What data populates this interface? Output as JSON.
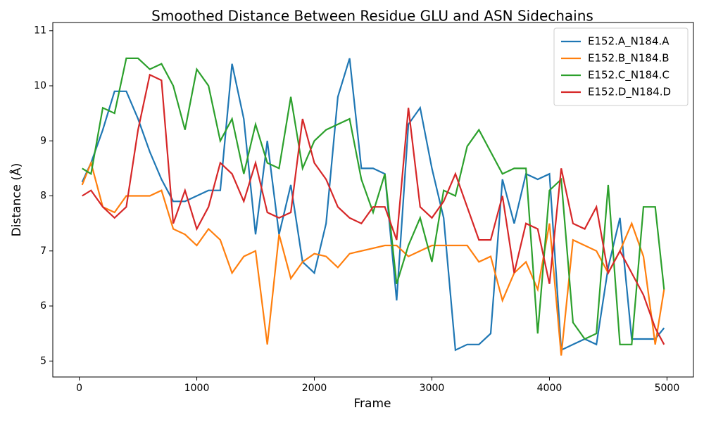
{
  "chart_data": {
    "type": "line",
    "title": "Smoothed Distance Between Residue GLU and ASN Sidechains",
    "x_label": "Frame",
    "y_label": "Distance (Å)",
    "x": [
      25,
      100,
      200,
      300,
      400,
      500,
      600,
      700,
      800,
      900,
      1000,
      1100,
      1200,
      1300,
      1400,
      1500,
      1600,
      1700,
      1800,
      1900,
      2000,
      2100,
      2200,
      2300,
      2400,
      2500,
      2600,
      2700,
      2800,
      2900,
      3000,
      3100,
      3200,
      3300,
      3400,
      3500,
      3600,
      3700,
      3800,
      3900,
      4000,
      4100,
      4200,
      4300,
      4400,
      4500,
      4600,
      4700,
      4800,
      4900,
      4975
    ],
    "series": [
      {
        "name": "E152.A_N184.A",
        "color": "#1f77b4",
        "values": [
          8.25,
          8.6,
          9.2,
          9.9,
          9.9,
          9.4,
          8.8,
          8.3,
          7.9,
          7.9,
          8.0,
          8.1,
          8.1,
          10.4,
          9.4,
          7.3,
          9.0,
          7.3,
          8.2,
          6.8,
          6.6,
          7.5,
          9.8,
          10.5,
          8.5,
          8.5,
          8.4,
          6.1,
          9.3,
          9.6,
          8.5,
          7.6,
          5.2,
          5.3,
          5.3,
          5.5,
          8.3,
          7.5,
          8.4,
          8.3,
          8.4,
          5.2,
          5.3,
          5.4,
          5.3,
          6.7,
          7.6,
          5.4,
          5.4,
          5.4,
          5.6
        ]
      },
      {
        "name": "E152.B_N184.B",
        "color": "#ff7f0e",
        "values": [
          8.2,
          8.6,
          7.8,
          7.7,
          8.0,
          8.0,
          8.0,
          8.1,
          7.4,
          7.3,
          7.1,
          7.4,
          7.2,
          6.6,
          6.9,
          7.0,
          5.3,
          7.3,
          6.5,
          6.8,
          6.95,
          6.9,
          6.7,
          6.95,
          7.0,
          7.05,
          7.1,
          7.1,
          6.9,
          7.0,
          7.1,
          7.1,
          7.1,
          7.1,
          6.8,
          6.9,
          6.1,
          6.6,
          6.8,
          6.3,
          7.5,
          5.1,
          7.2,
          7.1,
          7.0,
          6.6,
          7.0,
          7.5,
          6.9,
          5.3,
          6.3
        ]
      },
      {
        "name": "E152.C_N184.C",
        "color": "#2ca02c",
        "values": [
          8.5,
          8.4,
          9.6,
          9.5,
          10.5,
          10.5,
          10.3,
          10.4,
          10.0,
          9.2,
          10.3,
          10.0,
          9.0,
          9.4,
          8.4,
          9.3,
          8.6,
          8.5,
          9.8,
          8.5,
          9.0,
          9.2,
          9.3,
          9.4,
          8.3,
          7.7,
          8.4,
          6.4,
          7.1,
          7.6,
          6.8,
          8.1,
          8.0,
          8.9,
          9.2,
          8.8,
          8.4,
          8.5,
          8.5,
          5.5,
          8.1,
          8.3,
          5.7,
          5.4,
          5.5,
          8.2,
          5.3,
          5.3,
          7.8,
          7.8,
          6.3
        ]
      },
      {
        "name": "E152.D_N184.D",
        "color": "#d62728",
        "values": [
          8.0,
          8.1,
          7.8,
          7.6,
          7.8,
          9.2,
          10.2,
          10.1,
          7.5,
          8.1,
          7.4,
          7.8,
          8.6,
          8.4,
          7.9,
          8.6,
          7.7,
          7.6,
          7.7,
          9.4,
          8.6,
          8.3,
          7.8,
          7.6,
          7.5,
          7.8,
          7.8,
          7.2,
          9.6,
          7.8,
          7.6,
          7.9,
          8.4,
          7.8,
          7.2,
          7.2,
          8.0,
          6.6,
          7.5,
          7.4,
          6.4,
          8.5,
          7.5,
          7.4,
          7.8,
          6.6,
          7.0,
          6.6,
          6.2,
          5.6,
          5.3
        ]
      }
    ],
    "xlim": [
      -225,
      5225
    ],
    "ylim": [
      4.71,
      11.15
    ],
    "xticks": [
      0,
      1000,
      2000,
      3000,
      4000,
      5000
    ],
    "yticks": [
      5,
      6,
      7,
      8,
      9,
      10,
      11
    ],
    "legend": "upper-right"
  }
}
